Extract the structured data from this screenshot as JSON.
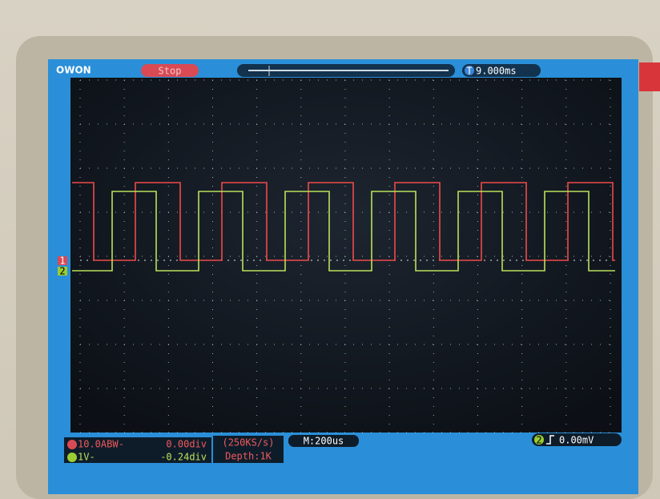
{
  "header": {
    "logo": "OWON",
    "run_state": "Stop",
    "trigger_marker": "T",
    "trigger_time": "9.000ms"
  },
  "channels": [
    {
      "marker": "1",
      "setting": "10.0ABW-",
      "offset": "0.00div"
    },
    {
      "marker": "2",
      "setting": "1V-",
      "offset": "-0.24div"
    }
  ],
  "acquisition": {
    "sample_rate": "(250KS/s)",
    "depth": "Depth:1K"
  },
  "timebase": "M:200us",
  "trigger": {
    "channel": "2",
    "level": "0.00mV"
  }
}
